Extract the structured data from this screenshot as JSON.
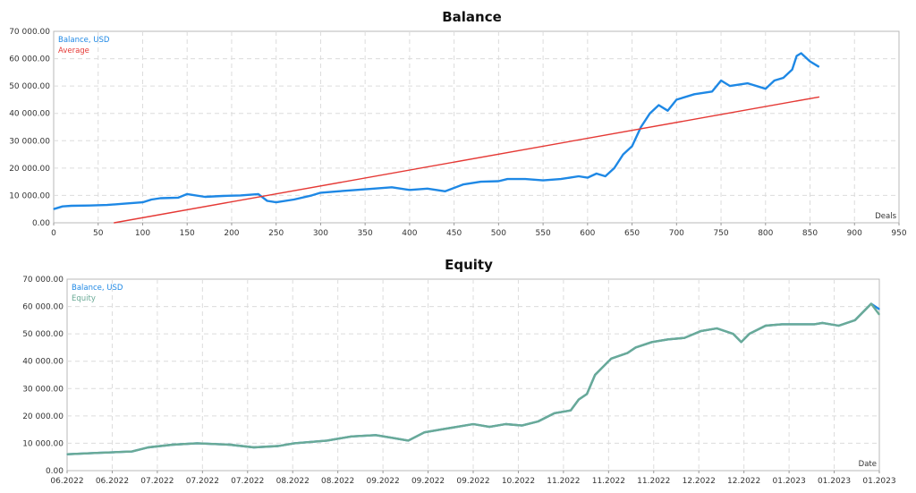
{
  "chart_data": [
    {
      "type": "line",
      "title": "Balance",
      "xlabel": "Deals",
      "ylim": [
        0,
        70000
      ],
      "xlim": [
        0,
        950
      ],
      "y_tick_labels": [
        "0.00",
        "10 000.00",
        "20 000.00",
        "30 000.00",
        "40 000.00",
        "50 000.00",
        "60 000.00",
        "70 000.00"
      ],
      "x_tick_labels": [
        "0",
        "50",
        "100",
        "150",
        "200",
        "250",
        "300",
        "350",
        "400",
        "450",
        "500",
        "550",
        "600",
        "650",
        "700",
        "750",
        "800",
        "850",
        "900",
        "950"
      ],
      "grid": true,
      "legend_position": "top-left",
      "series": [
        {
          "name": "Balance, USD",
          "color": "#1e88e5",
          "x": [
            0,
            10,
            20,
            40,
            60,
            80,
            100,
            110,
            120,
            140,
            150,
            170,
            190,
            210,
            230,
            240,
            250,
            270,
            290,
            300,
            320,
            340,
            360,
            380,
            400,
            420,
            440,
            460,
            480,
            500,
            510,
            530,
            550,
            570,
            590,
            600,
            610,
            620,
            630,
            640,
            650,
            660,
            670,
            680,
            690,
            700,
            720,
            740,
            750,
            760,
            780,
            800,
            810,
            820,
            830,
            835,
            840,
            850,
            860
          ],
          "values": [
            5000,
            6000,
            6200,
            6300,
            6500,
            7000,
            7500,
            8500,
            9000,
            9200,
            10500,
            9500,
            9800,
            10000,
            10500,
            8000,
            7500,
            8500,
            10000,
            11000,
            11500,
            12000,
            12500,
            13000,
            12000,
            12500,
            11500,
            14000,
            15000,
            15200,
            16000,
            16000,
            15500,
            16000,
            17000,
            16500,
            18000,
            17000,
            20000,
            25000,
            28000,
            35000,
            40000,
            43000,
            41000,
            45000,
            47000,
            48000,
            52000,
            50000,
            51000,
            49000,
            52000,
            53000,
            56000,
            61000,
            62000,
            59000,
            57000
          ]
        },
        {
          "name": "Average",
          "color": "#e53935",
          "x": [
            68,
            860
          ],
          "values": [
            0,
            46000
          ]
        }
      ]
    },
    {
      "type": "line",
      "title": "Equity",
      "xlabel": "Date",
      "ylim": [
        0,
        70000
      ],
      "y_tick_labels": [
        "0.00",
        "10 000.00",
        "20 000.00",
        "30 000.00",
        "40 000.00",
        "50 000.00",
        "60 000.00",
        "70 000.00"
      ],
      "x_tick_labels": [
        "06.2022",
        "06.2022",
        "07.2022",
        "07.2022",
        "07.2022",
        "08.2022",
        "08.2022",
        "09.2022",
        "09.2022",
        "09.2022",
        "10.2022",
        "11.2022",
        "11.2022",
        "11.2022",
        "12.2022",
        "12.2022",
        "01.2023",
        "01.2023",
        "01.2023"
      ],
      "grid": true,
      "legend_position": "top-left",
      "series": [
        {
          "name": "Balance, USD",
          "color": "#1e88e5",
          "x": [
            0,
            0.04,
            0.08,
            0.1,
            0.13,
            0.16,
            0.2,
            0.23,
            0.26,
            0.28,
            0.3,
            0.32,
            0.35,
            0.38,
            0.4,
            0.42,
            0.44,
            0.46,
            0.48,
            0.5,
            0.52,
            0.54,
            0.56,
            0.58,
            0.6,
            0.62,
            0.63,
            0.64,
            0.65,
            0.66,
            0.67,
            0.69,
            0.7,
            0.72,
            0.74,
            0.76,
            0.78,
            0.8,
            0.82,
            0.83,
            0.84,
            0.86,
            0.88,
            0.9,
            0.92,
            0.93,
            0.95,
            0.97,
            0.99,
            1.0
          ],
          "values": [
            6000,
            6500,
            7000,
            8500,
            9500,
            10000,
            9500,
            8500,
            9000,
            10000,
            10500,
            11000,
            12500,
            13000,
            12000,
            11000,
            14000,
            15000,
            16000,
            17000,
            16000,
            17000,
            16500,
            18000,
            21000,
            22000,
            26000,
            28000,
            35000,
            38000,
            41000,
            43000,
            45000,
            47000,
            48000,
            48500,
            51000,
            52000,
            50000,
            47000,
            50000,
            53000,
            53500,
            53500,
            53500,
            54000,
            53000,
            55000,
            61000,
            59000
          ]
        },
        {
          "name": "Equity",
          "color": "#6aaa96",
          "x": [
            0,
            0.04,
            0.08,
            0.1,
            0.13,
            0.16,
            0.2,
            0.23,
            0.26,
            0.28,
            0.3,
            0.32,
            0.35,
            0.38,
            0.4,
            0.42,
            0.44,
            0.46,
            0.48,
            0.5,
            0.52,
            0.54,
            0.56,
            0.58,
            0.6,
            0.62,
            0.63,
            0.64,
            0.65,
            0.66,
            0.67,
            0.69,
            0.7,
            0.72,
            0.74,
            0.76,
            0.78,
            0.8,
            0.82,
            0.83,
            0.84,
            0.86,
            0.88,
            0.9,
            0.92,
            0.93,
            0.95,
            0.97,
            0.99,
            1.0
          ],
          "values": [
            6000,
            6500,
            7000,
            8500,
            9500,
            10000,
            9500,
            8500,
            9000,
            10000,
            10500,
            11000,
            12500,
            13000,
            12000,
            11000,
            14000,
            15000,
            16000,
            17000,
            16000,
            17000,
            16500,
            18000,
            21000,
            22000,
            26000,
            28000,
            35000,
            38000,
            41000,
            43000,
            45000,
            47000,
            48000,
            48500,
            51000,
            52000,
            50000,
            47000,
            50000,
            53000,
            53500,
            53500,
            53500,
            54000,
            53000,
            55000,
            61000,
            57000
          ]
        }
      ]
    }
  ]
}
